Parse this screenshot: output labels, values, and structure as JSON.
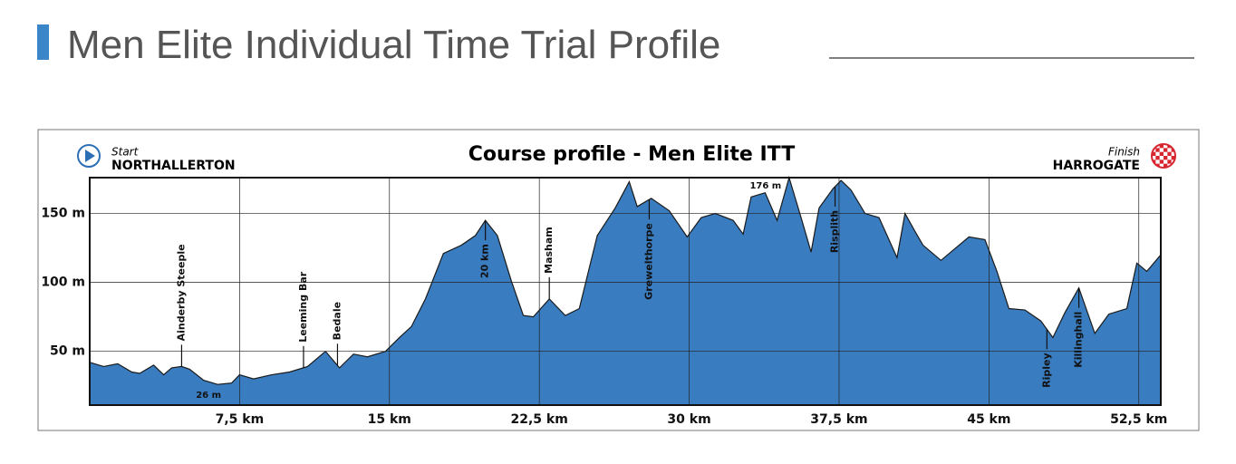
{
  "page_title": "Men Elite Individual Time Trial Profile",
  "chart_data": {
    "type": "area",
    "title": "Course profile - Men Elite ITT",
    "start": {
      "label": "Start",
      "place": "NORTHALLERTON"
    },
    "finish": {
      "label": "Finish",
      "place": "HARROGATE"
    },
    "color": "#3a7cc0",
    "x": [
      0,
      0.7,
      1.4,
      2.1,
      2.5,
      3.2,
      3.7,
      4.1,
      4.6,
      5.0,
      5.7,
      6.4,
      7.1,
      7.5,
      8.2,
      9.1,
      10.0,
      10.9,
      11.8,
      12.5,
      13.2,
      13.9,
      14.8,
      15.5,
      16.1,
      16.8,
      17.7,
      18.6,
      19.3,
      19.8,
      20.4,
      21.1,
      21.7,
      22.2,
      23.0,
      23.8,
      24.5,
      25.4,
      26.3,
      27.0,
      27.4,
      28.1,
      29.0,
      29.9,
      30.6,
      31.3,
      32.2,
      32.7,
      33.1,
      33.8,
      34.4,
      35.0,
      35.6,
      36.1,
      36.5,
      37.2,
      37.6,
      38.1,
      38.8,
      39.5,
      40.4,
      40.8,
      41.3,
      41.7,
      42.6,
      44.0,
      44.8,
      45.4,
      46.0,
      46.8,
      47.6,
      48.2,
      48.8,
      49.5,
      50.3,
      51.0,
      51.9,
      52.4,
      52.9,
      53.6
    ],
    "values": [
      42,
      39,
      41,
      35,
      34,
      40,
      33,
      38,
      39,
      37,
      29,
      26,
      27,
      33,
      30,
      33,
      35,
      39,
      50,
      38,
      48,
      46,
      50,
      60,
      68,
      88,
      121,
      127,
      134,
      145,
      134,
      101,
      76,
      75,
      88,
      76,
      81,
      134,
      154,
      173,
      155,
      161,
      152,
      133,
      147,
      150,
      145,
      135,
      162,
      165,
      145,
      176,
      147,
      122,
      154,
      168,
      174,
      167,
      150,
      147,
      118,
      150,
      137,
      127,
      116,
      133,
      131,
      108,
      81,
      80,
      72,
      60,
      78,
      96,
      63,
      77,
      81,
      114,
      108,
      120
    ],
    "xlim": [
      0,
      53.6
    ],
    "ylim": [
      11,
      176
    ],
    "xticks": [
      {
        "value": 7.5,
        "label": "7,5 km"
      },
      {
        "value": 15,
        "label": "15 km"
      },
      {
        "value": 22.5,
        "label": "22,5 km"
      },
      {
        "value": 30,
        "label": "30 km"
      },
      {
        "value": 37.5,
        "label": "37,5 km"
      },
      {
        "value": 45,
        "label": "45 km"
      },
      {
        "value": 52.5,
        "label": "52,5 km"
      }
    ],
    "yticks": [
      {
        "value": 50,
        "label": "50 m"
      },
      {
        "value": 100,
        "label": "100 m"
      },
      {
        "value": 150,
        "label": "150 m"
      }
    ],
    "grid": true,
    "places": [
      {
        "text": "Ainderby Steeple",
        "x": 4.6,
        "position": "above"
      },
      {
        "text": "Leeming Bar",
        "x": 10.7,
        "position": "above"
      },
      {
        "text": "Bedale",
        "x": 12.4,
        "position": "above"
      },
      {
        "text": "20 km",
        "x": 19.8,
        "position": "below"
      },
      {
        "text": "Masham",
        "x": 23.0,
        "position": "above"
      },
      {
        "text": "Grewelthorpe",
        "x": 28.0,
        "position": "below"
      },
      {
        "text": "Risplith",
        "x": 37.3,
        "position": "below"
      },
      {
        "text": "Ripley",
        "x": 47.9,
        "position": "below"
      },
      {
        "text": "Killinghall",
        "x": 49.5,
        "position": "below"
      }
    ],
    "extremes": [
      {
        "label": "176 m",
        "x": 35.0,
        "y": 176
      },
      {
        "label": "26 m",
        "x": 6.4,
        "y": 26
      }
    ]
  }
}
